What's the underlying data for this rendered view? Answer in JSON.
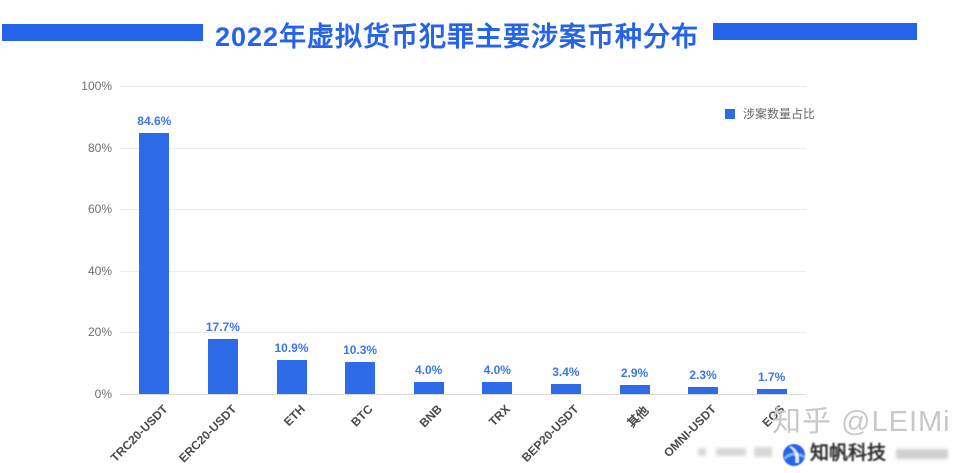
{
  "header": {
    "title": "2022年虚拟货币犯罪主要涉案币种分布"
  },
  "chart_data": {
    "type": "bar",
    "title": "2022年虚拟货币犯罪主要涉案币种分布",
    "categories": [
      "TRC20-USDT",
      "ERC20-USDT",
      "ETH",
      "BTC",
      "BNB",
      "TRX",
      "BEP20-USDT",
      "其他",
      "OMNI-USDT",
      "EOS"
    ],
    "values": [
      84.6,
      17.7,
      10.9,
      10.3,
      4.0,
      4.0,
      3.4,
      2.9,
      2.3,
      1.7
    ],
    "value_suffix": "%",
    "legend": "涉案数量占比",
    "legend_position": "top-right",
    "xlabel": "",
    "ylabel": "",
    "ylim": [
      0,
      100
    ],
    "yticks": [
      0,
      20,
      40,
      60,
      80,
      100
    ],
    "ytick_suffix": "%",
    "grid": true,
    "bar_color": "#2E6BE8",
    "value_label_color": "#3B76F0"
  },
  "colors": {
    "accent_blue": "#2563EB",
    "gridline": "#ECECEC",
    "axis_line": "#D9D9D9",
    "ytick_text": "#6E6E6E",
    "xtick_text": "#4A4A4A",
    "watermark_gray": "#C8C8C8"
  },
  "watermark": {
    "text": "知乎 @LEIMi"
  },
  "source_logo": {
    "text": "知帆科技"
  }
}
